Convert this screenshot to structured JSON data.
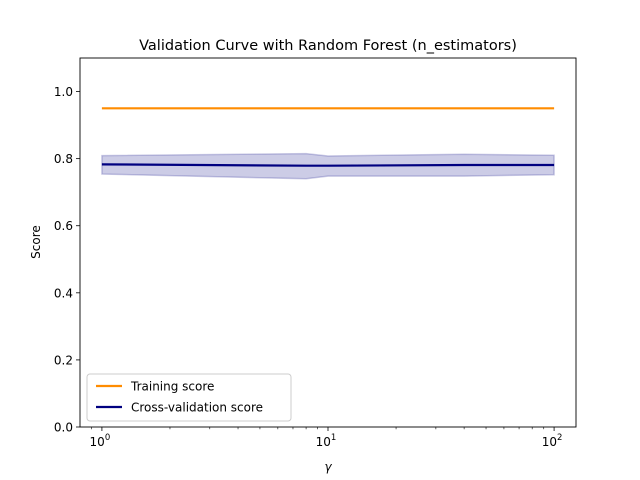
{
  "chart_data": {
    "type": "line",
    "title": "Validation Curve with Random Forest (n_estimators)",
    "xlabel": "γ",
    "ylabel": "Score",
    "xscale": "log",
    "xlim": [
      0.8,
      125
    ],
    "ylim": [
      0.0,
      1.1
    ],
    "grid": false,
    "legend_position": "lower-left",
    "x_ticks": [
      {
        "value": 1,
        "base": "10",
        "exp": "0"
      },
      {
        "value": 10,
        "base": "10",
        "exp": "1"
      },
      {
        "value": 100,
        "base": "10",
        "exp": "2"
      }
    ],
    "y_ticks": [
      {
        "value": 0.0,
        "label": "0.0"
      },
      {
        "value": 0.2,
        "label": "0.2"
      },
      {
        "value": 0.4,
        "label": "0.4"
      },
      {
        "value": 0.6,
        "label": "0.6"
      },
      {
        "value": 0.8,
        "label": "0.8"
      },
      {
        "value": 1.0,
        "label": "1.0"
      }
    ],
    "x": [
      1,
      8,
      10,
      40,
      100
    ],
    "series": [
      {
        "name": "Training score",
        "color": "#ff8c00",
        "values": [
          0.95,
          0.95,
          0.95,
          0.95,
          0.95
        ],
        "band_low": [
          0.95,
          0.95,
          0.95,
          0.95,
          0.95
        ],
        "band_high": [
          0.95,
          0.95,
          0.95,
          0.95,
          0.95
        ]
      },
      {
        "name": "Cross-validation score",
        "color": "#000080",
        "band_color": "#000080",
        "values": [
          0.783,
          0.779,
          0.779,
          0.781,
          0.781
        ],
        "band_low": [
          0.754,
          0.74,
          0.748,
          0.748,
          0.752
        ],
        "band_high": [
          0.809,
          0.815,
          0.808,
          0.813,
          0.81
        ]
      }
    ]
  }
}
